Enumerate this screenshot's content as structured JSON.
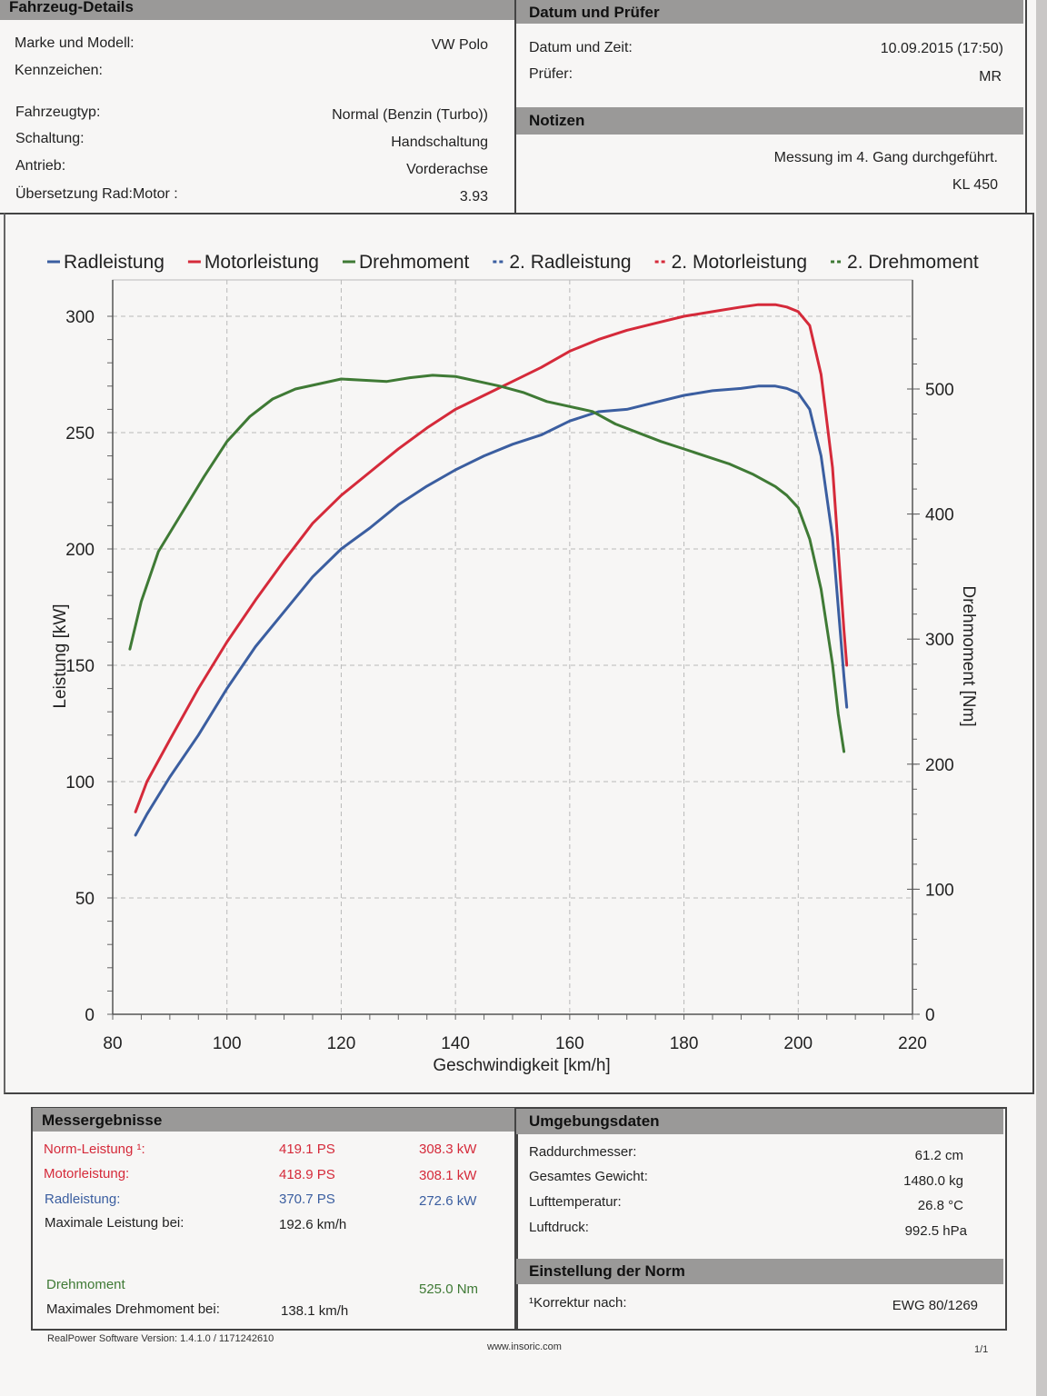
{
  "vehicle": {
    "header": "Fahrzeug-Details",
    "rows": [
      {
        "label": "Marke und Modell:",
        "value": "VW  Polo"
      },
      {
        "label": "Kennzeichen:",
        "value": ""
      },
      {
        "label": "Fahrzeugtyp:",
        "value": "Normal (Benzin (Turbo))"
      },
      {
        "label": "Schaltung:",
        "value": "Handschaltung"
      },
      {
        "label": "Antrieb:",
        "value": "Vorderachse"
      },
      {
        "label": "Übersetzung Rad:Motor :",
        "value": "3.93"
      }
    ]
  },
  "date": {
    "header": "Datum und Prüfer",
    "rows": [
      {
        "label": "Datum und Zeit:",
        "value": "10.09.2015 (17:50)"
      },
      {
        "label": "Prüfer:",
        "value": "MR"
      }
    ]
  },
  "notes": {
    "header": "Notizen",
    "lines": [
      "Messung im 4. Gang durchgeführt.",
      "KL 450"
    ]
  },
  "chart_data": {
    "type": "line",
    "xlabel": "Geschwindigkeit [km/h]",
    "ylabel": "Leistung [kW]",
    "y2label": "Drehmoment [Nm]",
    "xlim": [
      80,
      220
    ],
    "ylim": [
      0,
      300
    ],
    "y2lim": [
      0,
      500
    ],
    "xticks": [
      80,
      100,
      120,
      140,
      160,
      180,
      200,
      220
    ],
    "yticks": [
      0,
      50,
      100,
      150,
      200,
      250,
      300
    ],
    "y2ticks": [
      0,
      100,
      200,
      300,
      400,
      500
    ],
    "legend": [
      {
        "name": "Radleistung",
        "color": "#3b5ea0",
        "dash": false
      },
      {
        "name": "Motorleistung",
        "color": "#d52a3a",
        "dash": false
      },
      {
        "name": "Drehmoment",
        "color": "#3f7a35",
        "dash": false
      },
      {
        "name": "2. Radleistung",
        "color": "#3b5ea0",
        "dash": true
      },
      {
        "name": "2. Motorleistung",
        "color": "#d52a3a",
        "dash": true
      },
      {
        "name": "2. Drehmoment",
        "color": "#3f7a35",
        "dash": true
      }
    ],
    "series": [
      {
        "name": "Radleistung",
        "color": "#3b5ea0",
        "axis": "left",
        "x": [
          84,
          86,
          90,
          95,
          100,
          105,
          110,
          115,
          120,
          125,
          130,
          135,
          140,
          145,
          150,
          155,
          160,
          165,
          170,
          175,
          180,
          185,
          190,
          193,
          196,
          198,
          200,
          202,
          204,
          206,
          207,
          208,
          208.5
        ],
        "y": [
          77,
          86,
          102,
          120,
          140,
          158,
          173,
          188,
          200,
          209,
          219,
          227,
          234,
          240,
          245,
          249,
          255,
          259,
          260,
          263,
          266,
          268,
          269,
          270,
          270,
          269,
          267,
          260,
          240,
          205,
          175,
          145,
          132
        ]
      },
      {
        "name": "Motorleistung",
        "color": "#d52a3a",
        "axis": "left",
        "x": [
          84,
          86,
          90,
          95,
          100,
          105,
          110,
          115,
          120,
          125,
          130,
          135,
          140,
          145,
          150,
          155,
          160,
          165,
          170,
          175,
          180,
          185,
          190,
          193,
          196,
          198,
          200,
          202,
          204,
          206,
          207,
          208,
          208.5
        ],
        "y": [
          87,
          100,
          118,
          140,
          160,
          178,
          195,
          211,
          223,
          233,
          243,
          252,
          260,
          266,
          272,
          278,
          285,
          290,
          294,
          297,
          300,
          302,
          304,
          305,
          305,
          304,
          302,
          296,
          275,
          235,
          200,
          165,
          150
        ]
      },
      {
        "name": "Drehmoment",
        "color": "#3f7a35",
        "axis": "right",
        "x": [
          83,
          85,
          88,
          92,
          96,
          100,
          104,
          108,
          112,
          116,
          120,
          124,
          128,
          132,
          136,
          140,
          144,
          148,
          152,
          156,
          160,
          164,
          168,
          172,
          176,
          180,
          184,
          188,
          192,
          196,
          198,
          200,
          202,
          204,
          206,
          207,
          208
        ],
        "y": [
          292,
          330,
          370,
          400,
          430,
          458,
          478,
          492,
          500,
          504,
          508,
          507,
          506,
          509,
          511,
          510,
          506,
          502,
          497,
          490,
          486,
          482,
          472,
          465,
          458,
          452,
          446,
          440,
          432,
          422,
          415,
          405,
          380,
          340,
          280,
          240,
          210
        ]
      }
    ]
  },
  "results": {
    "header": "Messergebnisse",
    "rows": [
      {
        "label": "Norm-Leistung ¹:",
        "ps": "419.1 PS",
        "kw": "308.3 kW",
        "color": "red"
      },
      {
        "label": "Motorleistung:",
        "ps": "418.9 PS",
        "kw": "308.1 kW",
        "color": "red"
      },
      {
        "label": "Radleistung:",
        "ps": "370.7 PS",
        "kw": "272.6 kW",
        "color": "blue"
      }
    ],
    "max_power_label": "Maximale Leistung bei:",
    "max_power_value": "192.6 km/h",
    "torque_label": "Drehmoment",
    "torque_value": "525.0 Nm",
    "max_torque_label": "Maximales Drehmoment bei:",
    "max_torque_value": "138.1 km/h"
  },
  "environment": {
    "header": "Umgebungsdaten",
    "rows": [
      {
        "label": "Raddurchmesser:",
        "value": "61.2 cm"
      },
      {
        "label": "Gesamtes Gewicht:",
        "value": "1480.0 kg"
      },
      {
        "label": "Lufttemperatur:",
        "value": "26.8 °C"
      },
      {
        "label": "Luftdruck:",
        "value": "992.5 hPa"
      }
    ]
  },
  "norm": {
    "header": "Einstellung der Norm",
    "label": "¹Korrektur nach:",
    "value": "EWG 80/1269"
  },
  "footer": {
    "version": "RealPower Software Version:  1.4.1.0  /  1171242610",
    "website": "www.insoric.com",
    "page": "1/1"
  }
}
